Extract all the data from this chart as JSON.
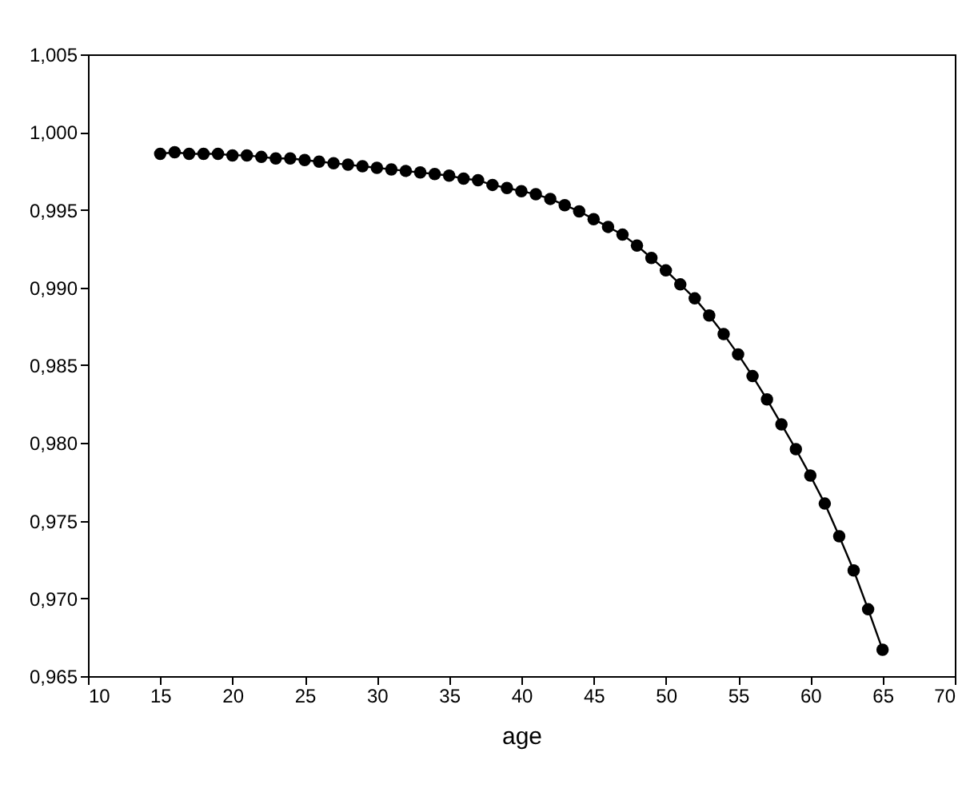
{
  "chart_data": {
    "type": "line",
    "xlabel": "age",
    "marker": "circle",
    "line_style": "solid",
    "grid": false,
    "legend": false,
    "x": [
      15,
      16,
      17,
      18,
      19,
      20,
      21,
      22,
      23,
      24,
      25,
      26,
      27,
      28,
      29,
      30,
      31,
      32,
      33,
      34,
      35,
      36,
      37,
      38,
      39,
      40,
      41,
      42,
      43,
      44,
      45,
      46,
      47,
      48,
      49,
      50,
      51,
      52,
      53,
      54,
      55,
      56,
      57,
      58,
      59,
      60,
      61,
      62,
      63,
      64,
      65
    ],
    "series": [
      {
        "color": "#000000",
        "values": [
          0.9986,
          0.9987,
          0.9986,
          0.9986,
          0.9986,
          0.9985,
          0.9985,
          0.9984,
          0.9983,
          0.9983,
          0.9982,
          0.9981,
          0.998,
          0.9979,
          0.9978,
          0.9977,
          0.9976,
          0.9975,
          0.9974,
          0.9973,
          0.9972,
          0.997,
          0.9969,
          0.9966,
          0.9964,
          0.9962,
          0.996,
          0.9957,
          0.9953,
          0.9949,
          0.9944,
          0.9939,
          0.9934,
          0.9927,
          0.9919,
          0.9911,
          0.9902,
          0.9893,
          0.9882,
          0.987,
          0.9857,
          0.9843,
          0.9828,
          0.9812,
          0.9796,
          0.9779,
          0.9761,
          0.974,
          0.9718,
          0.9693,
          0.9667
        ]
      }
    ],
    "xlim": [
      10,
      70
    ],
    "xticks": [
      10,
      15,
      20,
      25,
      30,
      35,
      40,
      45,
      50,
      55,
      60,
      65,
      70
    ],
    "ylim": [
      0.965,
      1.005
    ],
    "yticks": [
      {
        "value": 0.965,
        "label": "0,965"
      },
      {
        "value": 0.97,
        "label": "0,970"
      },
      {
        "value": 0.975,
        "label": "0,975"
      },
      {
        "value": 0.98,
        "label": "0,980"
      },
      {
        "value": 0.985,
        "label": "0,985"
      },
      {
        "value": 0.99,
        "label": "0,990"
      },
      {
        "value": 0.995,
        "label": "0,995"
      },
      {
        "value": 1.0,
        "label": "1,000"
      },
      {
        "value": 1.005,
        "label": "1,005"
      }
    ]
  }
}
